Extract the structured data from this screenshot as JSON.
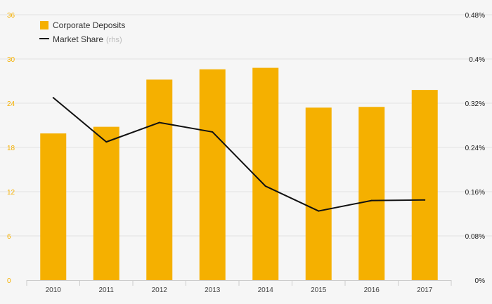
{
  "chart_data": {
    "type": "bar",
    "categories": [
      "2010",
      "2011",
      "2012",
      "2013",
      "2014",
      "2015",
      "2016",
      "2017"
    ],
    "series": [
      {
        "name": "Corporate Deposits",
        "type": "bar",
        "axis": "left",
        "values": [
          19.9,
          20.8,
          27.2,
          28.6,
          28.8,
          23.4,
          23.5,
          25.8
        ]
      },
      {
        "name": "Market Share",
        "name_suffix": "(rhs)",
        "type": "line",
        "axis": "right",
        "values": [
          0.33,
          0.25,
          0.285,
          0.268,
          0.17,
          0.125,
          0.144,
          0.145
        ]
      }
    ],
    "ylim_left": [
      0,
      36
    ],
    "yticks_left": [
      0,
      6,
      12,
      18,
      24,
      30,
      36
    ],
    "ylim_right": [
      0,
      0.48
    ],
    "yticks_right": [
      0,
      0.08,
      0.16,
      0.24,
      0.32,
      0.4,
      0.48
    ],
    "ytick_labels_right": [
      "0%",
      "0.08%",
      "0.16%",
      "0.24%",
      "0.32%",
      "0.4%",
      "0.48%"
    ],
    "grid": true,
    "legend_position": "top-left",
    "colors": {
      "bar": "#f5b000",
      "line": "#111111",
      "grid": "#e2e2e2",
      "left_ticks": "#f5b000",
      "background": "#f6f6f6"
    }
  }
}
